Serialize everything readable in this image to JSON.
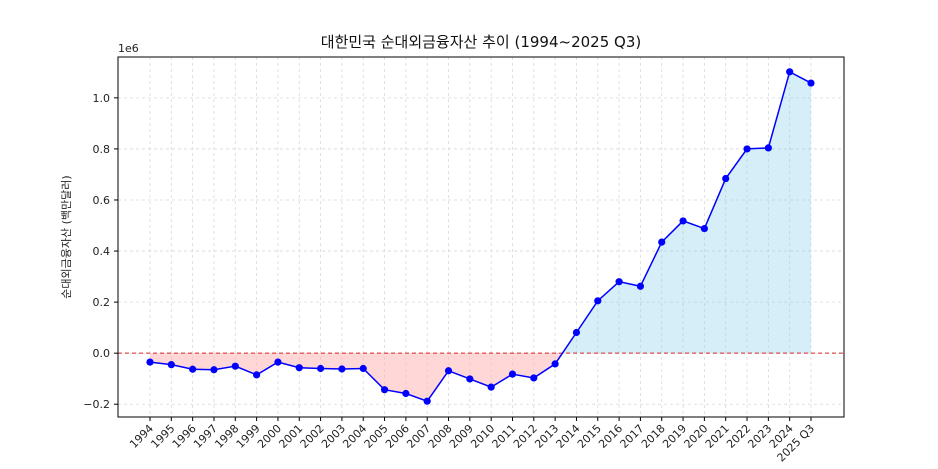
{
  "chart_data": {
    "type": "line",
    "title": "대한민국 순대외금융자산 추이 (1994~2025 Q3)",
    "xlabel": "",
    "ylabel": "순대외금융자산 (백만달러)",
    "y_offset_label": "1e6",
    "ylim": [
      -0.25,
      1.16
    ],
    "yticks": [
      -0.2,
      0.0,
      0.2,
      0.4,
      0.6,
      0.8,
      1.0
    ],
    "ytick_labels": [
      "−0.2",
      "0.0",
      "0.2",
      "0.4",
      "0.6",
      "0.8",
      "1.0"
    ],
    "grid": true,
    "zero_line": true,
    "categories": [
      "1994",
      "1995",
      "1996",
      "1997",
      "1998",
      "1999",
      "2000",
      "2001",
      "2002",
      "2003",
      "2004",
      "2005",
      "2006",
      "2007",
      "2008",
      "2009",
      "2010",
      "2011",
      "2012",
      "2013",
      "2014",
      "2015",
      "2016",
      "2017",
      "2018",
      "2019",
      "2020",
      "2021",
      "2022",
      "2023",
      "2024",
      "2025 Q3"
    ],
    "series": [
      {
        "values": [
          -0.035,
          -0.045,
          -0.063,
          -0.065,
          -0.051,
          -0.085,
          -0.035,
          -0.057,
          -0.06,
          -0.062,
          -0.06,
          -0.143,
          -0.158,
          -0.188,
          -0.069,
          -0.101,
          -0.133,
          -0.082,
          -0.097,
          -0.042,
          0.081,
          0.205,
          0.28,
          0.262,
          0.435,
          0.518,
          0.488,
          0.684,
          0.8,
          0.804,
          1.102,
          1.058
        ],
        "color": "#0000ff"
      }
    ],
    "colors": {
      "positive_fill": "#87ceeb",
      "negative_fill": "#ffb6b6",
      "zero_line": "#d62728",
      "grid": "#d9d9d9",
      "axis": "#000000"
    }
  }
}
